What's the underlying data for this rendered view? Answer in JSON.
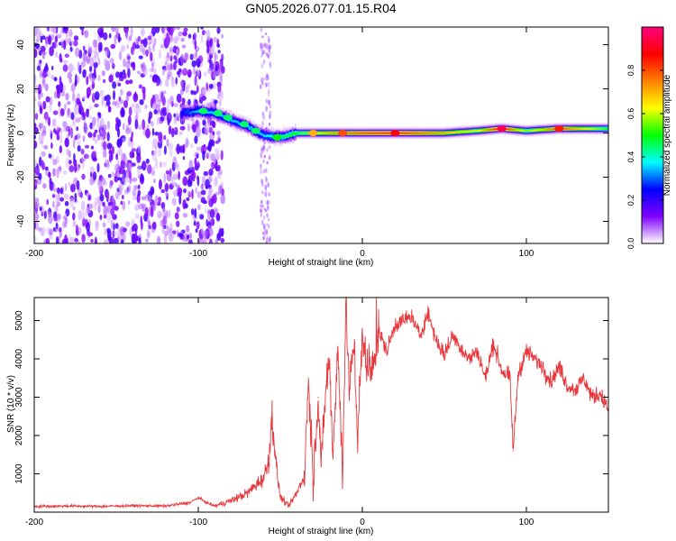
{
  "title": "GN05.2026.077.01.15.R04",
  "chart_data": [
    {
      "type": "heatmap",
      "title": "GN05.2026.077.01.15.R04",
      "xlabel": "Height of straight line (km)",
      "ylabel": "Frequency (Hz)",
      "xlim": [
        -200,
        150
      ],
      "ylim": [
        -50,
        48
      ],
      "xticks": [
        -200,
        -100,
        0,
        100
      ],
      "yticks": [
        -40,
        -20,
        0,
        20,
        40
      ],
      "colorbar": {
        "label": "Normalized spectral amplitude",
        "range": [
          0,
          1
        ],
        "ticks": [
          "0.0",
          "0.2",
          "0.4",
          "0.6",
          "0.8"
        ],
        "tick_values": [
          0,
          0.2,
          0.4,
          0.6,
          0.8
        ],
        "colors": [
          "#ffffff",
          "#7f00ff",
          "#0000ff",
          "#00ffff",
          "#00ff00",
          "#ffff00",
          "#ff7f00",
          "#ff0000",
          "#ff0080"
        ]
      },
      "ridge": {
        "description": "signal ridge (x km, center Hz, amplitude)",
        "points": [
          [
            -110,
            9,
            0.25
          ],
          [
            -100,
            10,
            0.35
          ],
          [
            -90,
            9,
            0.35
          ],
          [
            -80,
            6,
            0.35
          ],
          [
            -70,
            3,
            0.35
          ],
          [
            -60,
            -1,
            0.35
          ],
          [
            -50,
            -2,
            0.45
          ],
          [
            -40,
            0,
            0.5
          ],
          [
            -30,
            0,
            0.6
          ],
          [
            -20,
            0,
            0.7
          ],
          [
            -10,
            0,
            0.75
          ],
          [
            0,
            0,
            0.8
          ],
          [
            20,
            0,
            0.85
          ],
          [
            50,
            0,
            0.7
          ],
          [
            70,
            1,
            0.6
          ],
          [
            85,
            2,
            0.9
          ],
          [
            100,
            1,
            0.55
          ],
          [
            120,
            2,
            0.8
          ],
          [
            150,
            2,
            0.5
          ]
        ],
        "noise_region_x": [
          -200,
          -85
        ]
      }
    },
    {
      "type": "line",
      "xlabel": "Height of straight line (km)",
      "ylabel": "SNR (10 * v/v)",
      "xlim": [
        -200,
        150
      ],
      "ylim": [
        0,
        5600
      ],
      "xticks": [
        -200,
        -100,
        0,
        100
      ],
      "yticks": [
        1000,
        2000,
        3000,
        4000,
        5000
      ],
      "color": "#e8383d",
      "series": [
        {
          "name": "SNR",
          "x": [
            -200,
            -180,
            -160,
            -140,
            -120,
            -105,
            -100,
            -95,
            -90,
            -80,
            -70,
            -60,
            -57,
            -55,
            -52,
            -50,
            -45,
            -40,
            -35,
            -33,
            -30,
            -27,
            -25,
            -22,
            -20,
            -18,
            -15,
            -12,
            -10,
            -8,
            -5,
            -3,
            0,
            5,
            10,
            15,
            20,
            25,
            30,
            35,
            40,
            45,
            50,
            55,
            60,
            65,
            70,
            75,
            80,
            85,
            90,
            92,
            95,
            100,
            105,
            110,
            115,
            120,
            125,
            130,
            135,
            140,
            145,
            150
          ],
          "y": [
            150,
            160,
            150,
            170,
            160,
            250,
            380,
            250,
            160,
            300,
            500,
            900,
            1400,
            2500,
            1000,
            400,
            150,
            500,
            1000,
            3500,
            800,
            3000,
            1200,
            3400,
            4000,
            1500,
            4300,
            1000,
            5500,
            3200,
            4500,
            2000,
            4500,
            3500,
            4700,
            4200,
            4900,
            5000,
            5100,
            4600,
            5200,
            4500,
            4100,
            4600,
            4300,
            4000,
            4200,
            3500,
            4400,
            3700,
            3500,
            1600,
            3600,
            4200,
            4000,
            3800,
            3400,
            3800,
            3300,
            3200,
            3500,
            3000,
            3100,
            2700
          ]
        }
      ]
    }
  ]
}
